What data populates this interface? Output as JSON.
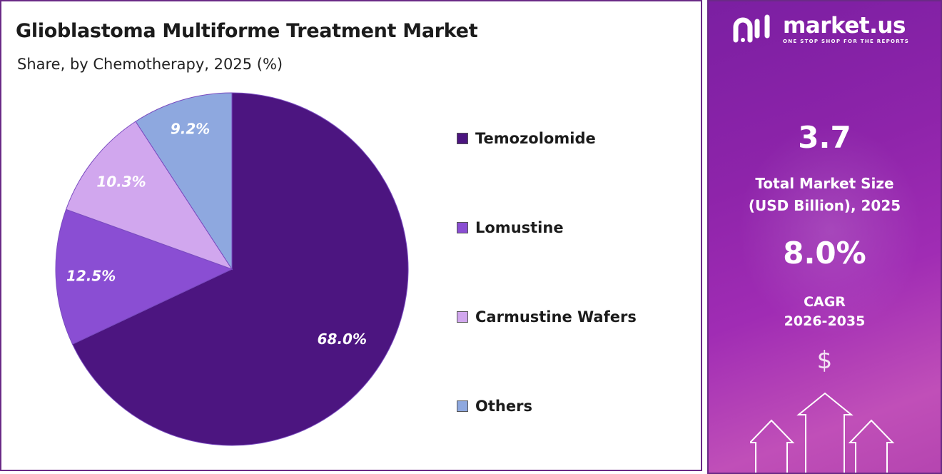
{
  "title": "Glioblastoma Multiforme Treatment Market",
  "subtitle": "Share, by Chemotherapy, 2025 (%)",
  "chart_data": {
    "type": "pie",
    "title": "Glioblastoma Multiforme Treatment Market",
    "subtitle": "Share, by Chemotherapy, 2025 (%)",
    "categories": [
      "Temozolomide",
      "Lomustine",
      "Carmustine Wafers",
      "Others"
    ],
    "values": [
      68.0,
      12.5,
      10.3,
      9.2
    ],
    "labels": [
      "68.0%",
      "12.5%",
      "10.3%",
      "9.2%"
    ],
    "colors": [
      "#4c1580",
      "#8a4ed3",
      "#d1a7ee",
      "#8ea8df"
    ],
    "start_angle": "12 o'clock",
    "direction": "clockwise",
    "legend_placement": "right"
  },
  "sidebar": {
    "brand_name": "market.us",
    "brand_tagline": "ONE STOP SHOP FOR THE REPORTS",
    "market_size_value": "3.7",
    "market_size_caption_line1": "Total Market Size",
    "market_size_caption_line2": "(USD Billion), 2025",
    "cagr_value": "8.0%",
    "cagr_caption_line1": "CAGR",
    "cagr_caption_line2": "2026-2035",
    "icons": [
      "market-us-logo-icon",
      "dollar-icon",
      "up-arrow-icon"
    ]
  }
}
